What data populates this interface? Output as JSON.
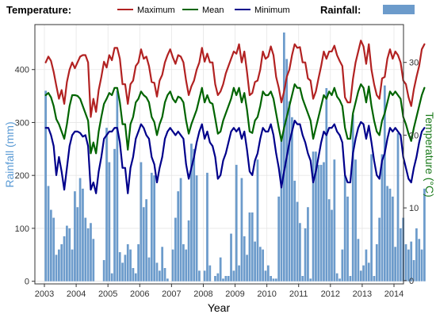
{
  "legend": {
    "temperature_title": "Temperature:",
    "rainfall_title": "Rainfall:",
    "series_labels": [
      "Maximum",
      "Mean",
      "Minimum"
    ]
  },
  "axes": {
    "x_title": "Year",
    "y_left_title": "Rainfall (mm)",
    "y_right_title": "Temperature (°C)"
  },
  "colors": {
    "maximum": "#B22222",
    "mean": "#006400",
    "minimum": "#00008B",
    "rainfall": "#6C9BCB",
    "left_axis_title": "#5B9BD5",
    "right_axis_title": "#1A7A1A"
  },
  "chart_data": {
    "type": "bar+line",
    "x_label": "Year",
    "x_ticks": [
      2003,
      2004,
      2005,
      2006,
      2007,
      2008,
      2009,
      2010,
      2011,
      2012,
      2013,
      2014
    ],
    "x_range": [
      2003.0,
      2014.0
    ],
    "start": "2003-01",
    "frequency": "monthly",
    "rainfall": {
      "name": "Rainfall",
      "unit": "mm",
      "axis": "left",
      "ylim": [
        -5,
        485
      ],
      "y_ticks": [
        0,
        100,
        200,
        300,
        400
      ],
      "values": [
        360,
        180,
        135,
        120,
        50,
        60,
        70,
        85,
        105,
        100,
        60,
        170,
        140,
        195,
        175,
        120,
        100,
        110,
        80,
        0,
        0,
        0,
        40,
        290,
        225,
        15,
        250,
        360,
        55,
        35,
        50,
        70,
        60,
        25,
        15,
        70,
        225,
        140,
        155,
        45,
        205,
        200,
        35,
        20,
        65,
        25,
        5,
        0,
        60,
        120,
        170,
        195,
        70,
        60,
        115,
        260,
        250,
        200,
        20,
        0,
        20,
        205,
        30,
        0,
        10,
        15,
        45,
        5,
        10,
        10,
        90,
        20,
        220,
        30,
        195,
        85,
        50,
        130,
        130,
        75,
        230,
        65,
        60,
        20,
        30,
        10,
        5,
        5,
        160,
        270,
        470,
        420,
        340,
        310,
        190,
        150,
        110,
        10,
        100,
        140,
        5,
        245,
        245,
        220,
        220,
        225,
        365,
        155,
        135,
        230,
        15,
        5,
        60,
        200,
        160,
        10,
        315,
        230,
        80,
        20,
        30,
        60,
        35,
        240,
        10,
        70,
        120,
        240,
        370,
        180,
        175,
        160,
        65,
        280,
        100,
        120,
        70,
        60,
        75,
        40,
        100,
        80,
        60,
        175
      ]
    },
    "temperature": {
      "unit": "°C",
      "axis": "right",
      "ylim": [
        -0.45,
        35.2
      ],
      "y_ticks": [
        0,
        10,
        20,
        30
      ],
      "series": [
        {
          "name": "Maximum",
          "values": [
            30.0,
            30.8,
            30.2,
            28.7,
            26.8,
            25.0,
            26.2,
            24.3,
            27.3,
            29.0,
            30.0,
            29.2,
            30.0,
            30.8,
            31.0,
            31.0,
            30.0,
            22.5,
            25.0,
            23.2,
            26.2,
            28.0,
            30.1,
            29.3,
            31.0,
            30.3,
            32.0,
            32.0,
            30.5,
            27.0,
            27.0,
            24.3,
            27.0,
            27.5,
            29.5,
            30.0,
            31.8,
            30.5,
            30.8,
            29.5,
            27.3,
            27.2,
            25.3,
            27.5,
            28.3,
            30.0,
            31.0,
            31.8,
            30.7,
            29.8,
            31.0,
            30.8,
            30.0,
            27.5,
            25.5,
            26.7,
            27.5,
            29.0,
            30.0,
            32.0,
            30.1,
            31.2,
            30.0,
            30.0,
            27.0,
            25.5,
            26.0,
            27.0,
            28.5,
            29.5,
            30.5,
            31.5,
            31.2,
            32.5,
            30.0,
            31.5,
            28.7,
            25.5,
            25.8,
            27.3,
            27.5,
            29.0,
            31.5,
            30.5,
            30.8,
            32.2,
            31.0,
            28.0,
            26.5,
            24.5,
            26.0,
            28.0,
            29.0,
            31.0,
            32.5,
            32.0,
            32.1,
            30.0,
            30.0,
            27.8,
            27.5,
            25.0,
            26.0,
            27.8,
            29.5,
            31.5,
            30.5,
            31.5,
            31.5,
            32.3,
            31.0,
            30.2,
            29.5,
            25.2,
            24.5,
            24.5,
            27.7,
            30.0,
            31.5,
            33.0,
            32.2,
            29.8,
            32.5,
            29.0,
            27.0,
            25.5,
            25.0,
            27.8,
            28.0,
            30.5,
            31.8,
            30.5,
            31.5,
            31.0,
            30.0,
            27.5,
            27.0,
            25.2,
            24.0,
            26.3,
            28.0,
            29.5,
            31.8,
            32.5
          ]
        },
        {
          "name": "Mean",
          "values": [
            25.5,
            25.8,
            25.2,
            24.0,
            22.2,
            21.5,
            20.5,
            19.5,
            21.5,
            24.0,
            25.5,
            25.5,
            25.4,
            25.0,
            24.0,
            23.0,
            22.0,
            17.5,
            19.0,
            17.5,
            20.5,
            22.5,
            24.3,
            25.0,
            25.8,
            25.5,
            26.5,
            26.5,
            24.5,
            21.5,
            21.5,
            18.0,
            21.5,
            22.5,
            24.5,
            25.0,
            26.0,
            25.5,
            25.2,
            24.5,
            22.5,
            21.8,
            20.0,
            21.5,
            22.5,
            24.5,
            25.5,
            26.0,
            25.0,
            24.5,
            25.3,
            25.1,
            24.5,
            22.0,
            20.2,
            21.5,
            22.5,
            23.5,
            25.0,
            26.5,
            24.5,
            25.5,
            24.5,
            24.3,
            22.3,
            20.2,
            20.5,
            22.0,
            23.0,
            24.0,
            25.0,
            26.5,
            25.5,
            26.5,
            24.5,
            25.8,
            23.5,
            20.5,
            20.3,
            22.0,
            22.5,
            24.0,
            26.0,
            25.5,
            25.5,
            26.0,
            25.0,
            23.0,
            21.0,
            19.2,
            21.0,
            22.5,
            24.0,
            25.5,
            27.0,
            26.5,
            26.5,
            25.0,
            24.0,
            23.0,
            22.0,
            19.5,
            21.0,
            22.5,
            24.0,
            25.5,
            25.0,
            26.0,
            25.5,
            26.5,
            25.3,
            24.8,
            24.0,
            21.0,
            19.5,
            19.5,
            23.0,
            24.5,
            26.0,
            27.0,
            26.5,
            24.5,
            26.7,
            24.0,
            22.0,
            20.5,
            20.0,
            22.0,
            23.0,
            24.5,
            26.0,
            25.5,
            26.0,
            25.5,
            25.0,
            22.5,
            21.5,
            20.2,
            19.2,
            21.0,
            22.5,
            24.0,
            25.5,
            26.5
          ]
        },
        {
          "name": "Minimum",
          "values": [
            21.0,
            21.0,
            20.0,
            18.5,
            14.5,
            17.0,
            15.0,
            12.5,
            15.5,
            18.5,
            20.0,
            20.5,
            20.5,
            20.3,
            19.8,
            20.0,
            18.5,
            12.5,
            13.5,
            12.0,
            15.0,
            17.0,
            19.5,
            20.0,
            20.5,
            20.5,
            21.0,
            21.0,
            19.0,
            15.5,
            15.5,
            12.0,
            15.5,
            17.0,
            19.5,
            20.5,
            21.5,
            21.0,
            20.0,
            19.5,
            17.0,
            16.0,
            13.5,
            15.5,
            17.0,
            19.5,
            20.5,
            21.0,
            20.5,
            20.0,
            20.5,
            20.0,
            19.5,
            16.0,
            14.0,
            15.5,
            17.0,
            19.0,
            20.5,
            21.5,
            19.5,
            20.5,
            19.0,
            18.5,
            17.0,
            14.0,
            14.5,
            16.5,
            17.5,
            19.0,
            20.5,
            21.0,
            20.5,
            21.0,
            19.5,
            20.5,
            18.0,
            15.0,
            14.5,
            16.5,
            17.5,
            19.5,
            21.0,
            20.5,
            20.5,
            21.5,
            20.0,
            17.5,
            15.5,
            12.8,
            15.0,
            17.0,
            19.0,
            20.5,
            22.0,
            21.5,
            21.5,
            20.0,
            19.0,
            17.5,
            16.5,
            13.5,
            15.0,
            17.0,
            19.0,
            20.5,
            20.0,
            21.0,
            21.0,
            21.5,
            20.5,
            20.0,
            19.0,
            14.5,
            13.5,
            13.5,
            17.5,
            19.5,
            21.0,
            21.8,
            21.5,
            19.5,
            21.3,
            19.0,
            16.5,
            14.5,
            14.0,
            16.5,
            17.5,
            19.5,
            21.0,
            20.5,
            21.0,
            20.5,
            20.0,
            17.0,
            15.5,
            14.0,
            13.5,
            15.5,
            17.0,
            19.0,
            20.5,
            21.0
          ]
        }
      ]
    },
    "grid": true,
    "legend_position": "top"
  }
}
